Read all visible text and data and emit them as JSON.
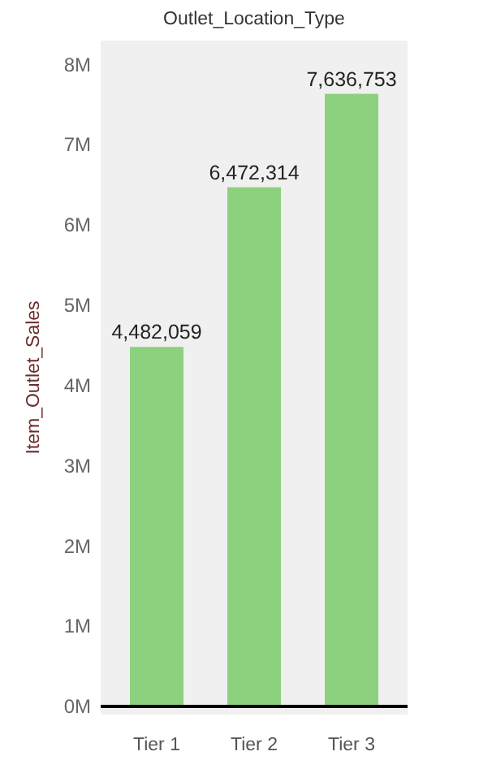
{
  "chart_data": {
    "type": "bar",
    "title": "Outlet_Location_Type",
    "ylabel": "Item_Outlet_Sales",
    "categories": [
      "Tier 1",
      "Tier 2",
      "Tier 3"
    ],
    "values": [
      4482059,
      6472314,
      7636753
    ],
    "color": "#8cd17d",
    "value_labels": [
      "4,482,059",
      "6,472,314",
      "7,636,753"
    ],
    "ylim": [
      -100000,
      8300000
    ],
    "yticks": [
      {
        "value": 0,
        "label": "0M"
      },
      {
        "value": 1000000,
        "label": "1M"
      },
      {
        "value": 2000000,
        "label": "2M"
      },
      {
        "value": 3000000,
        "label": "3M"
      },
      {
        "value": 4000000,
        "label": "4M"
      },
      {
        "value": 5000000,
        "label": "5M"
      },
      {
        "value": 6000000,
        "label": "6M"
      },
      {
        "value": 7000000,
        "label": "7M"
      },
      {
        "value": 8000000,
        "label": "8M"
      }
    ],
    "ref_lines": [
      {
        "axis": "y",
        "value": 0,
        "color": "#000000"
      }
    ],
    "grid": false
  }
}
